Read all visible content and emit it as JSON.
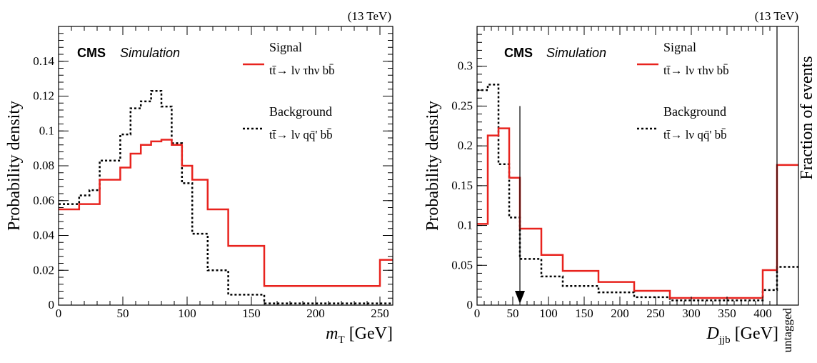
{
  "chart_data": [
    {
      "type": "histogram",
      "energy": "(13 TeV)",
      "cms_label": "CMS",
      "cms_sub": "Simulation",
      "ylabel": "Probability density",
      "xlabel_symbol": "m",
      "xlabel_sub": "T",
      "xlabel_unit": "[GeV]",
      "xlim": [
        0,
        260
      ],
      "ylim": [
        0,
        0.16
      ],
      "xticks": [
        0,
        50,
        100,
        150,
        200,
        250
      ],
      "xtick_labels": [
        "0",
        "50",
        "100",
        "150",
        "200",
        "250"
      ],
      "yticks": [
        0,
        0.02,
        0.04,
        0.06,
        0.08,
        0.1,
        0.12,
        0.14
      ],
      "ytick_labels": [
        "0",
        "0.02",
        "0.04",
        "0.06",
        "0.08",
        "0.1",
        "0.12",
        "0.14"
      ],
      "series": [
        {
          "name": "Signal",
          "process": "tt̄→ lν τhν bb̄",
          "style": "solid",
          "color": "#e8231e",
          "edges": [
            0,
            16,
            32,
            48,
            56,
            64,
            72,
            80,
            88,
            96,
            104,
            116,
            132,
            160,
            250,
            260
          ],
          "values": [
            0.055,
            0.058,
            0.072,
            0.079,
            0.087,
            0.092,
            0.094,
            0.095,
            0.092,
            0.08,
            0.072,
            0.055,
            0.034,
            0.011,
            0.026
          ]
        },
        {
          "name": "Background",
          "process": "tt̄→ lν qq̄' bb̄",
          "style": "dotted",
          "color": "#000000",
          "edges": [
            0,
            16,
            24,
            32,
            40,
            48,
            56,
            64,
            72,
            80,
            88,
            96,
            104,
            116,
            132,
            160,
            250,
            260
          ],
          "values": [
            0.058,
            0.063,
            0.066,
            0.083,
            0.083,
            0.098,
            0.113,
            0.117,
            0.123,
            0.114,
            0.093,
            0.07,
            0.041,
            0.02,
            0.006,
            0.001,
            0.001
          ]
        }
      ]
    },
    {
      "type": "histogram",
      "energy": "(13 TeV)",
      "cms_label": "CMS",
      "cms_sub": "Simulation",
      "ylabel": "Probability density",
      "ylabel_right": "Fraction of events",
      "xlabel_symbol": "D",
      "xlabel_sub": "jjb",
      "xlabel_unit": "[GeV]",
      "untagged_label": "untagged",
      "xlim": [
        0,
        450
      ],
      "ylim": [
        0,
        0.35
      ],
      "xticks": [
        0,
        50,
        100,
        150,
        200,
        250,
        300,
        350,
        400
      ],
      "xtick_labels": [
        "0",
        "50",
        "100",
        "150",
        "200",
        "250",
        "300",
        "350",
        "400"
      ],
      "yticks": [
        0,
        0.05,
        0.1,
        0.15,
        0.2,
        0.25,
        0.3
      ],
      "ytick_labels": [
        "0",
        "0.05",
        "0.1",
        "0.15",
        "0.2",
        "0.25",
        "0.3"
      ],
      "divider_x": 420,
      "arrow": {
        "x": 60,
        "y_top": 0.25,
        "y_bottom": 0
      },
      "series": [
        {
          "name": "Signal",
          "process": "tt̄→ lν τhν bb̄",
          "style": "solid",
          "color": "#e8231e",
          "edges": [
            0,
            15,
            30,
            45,
            60,
            90,
            120,
            170,
            220,
            270,
            400,
            420,
            450
          ],
          "values": [
            0.102,
            0.213,
            0.222,
            0.16,
            0.096,
            0.063,
            0.043,
            0.029,
            0.018,
            0.009,
            0.044,
            0.176
          ]
        },
        {
          "name": "Background",
          "process": "tt̄→ lν qq̄' bb̄",
          "style": "dotted",
          "color": "#000000",
          "edges": [
            0,
            15,
            30,
            45,
            60,
            90,
            120,
            170,
            220,
            270,
            400,
            420,
            450
          ],
          "values": [
            0.27,
            0.277,
            0.177,
            0.11,
            0.058,
            0.036,
            0.024,
            0.016,
            0.01,
            0.006,
            0.019,
            0.048
          ]
        }
      ]
    }
  ]
}
